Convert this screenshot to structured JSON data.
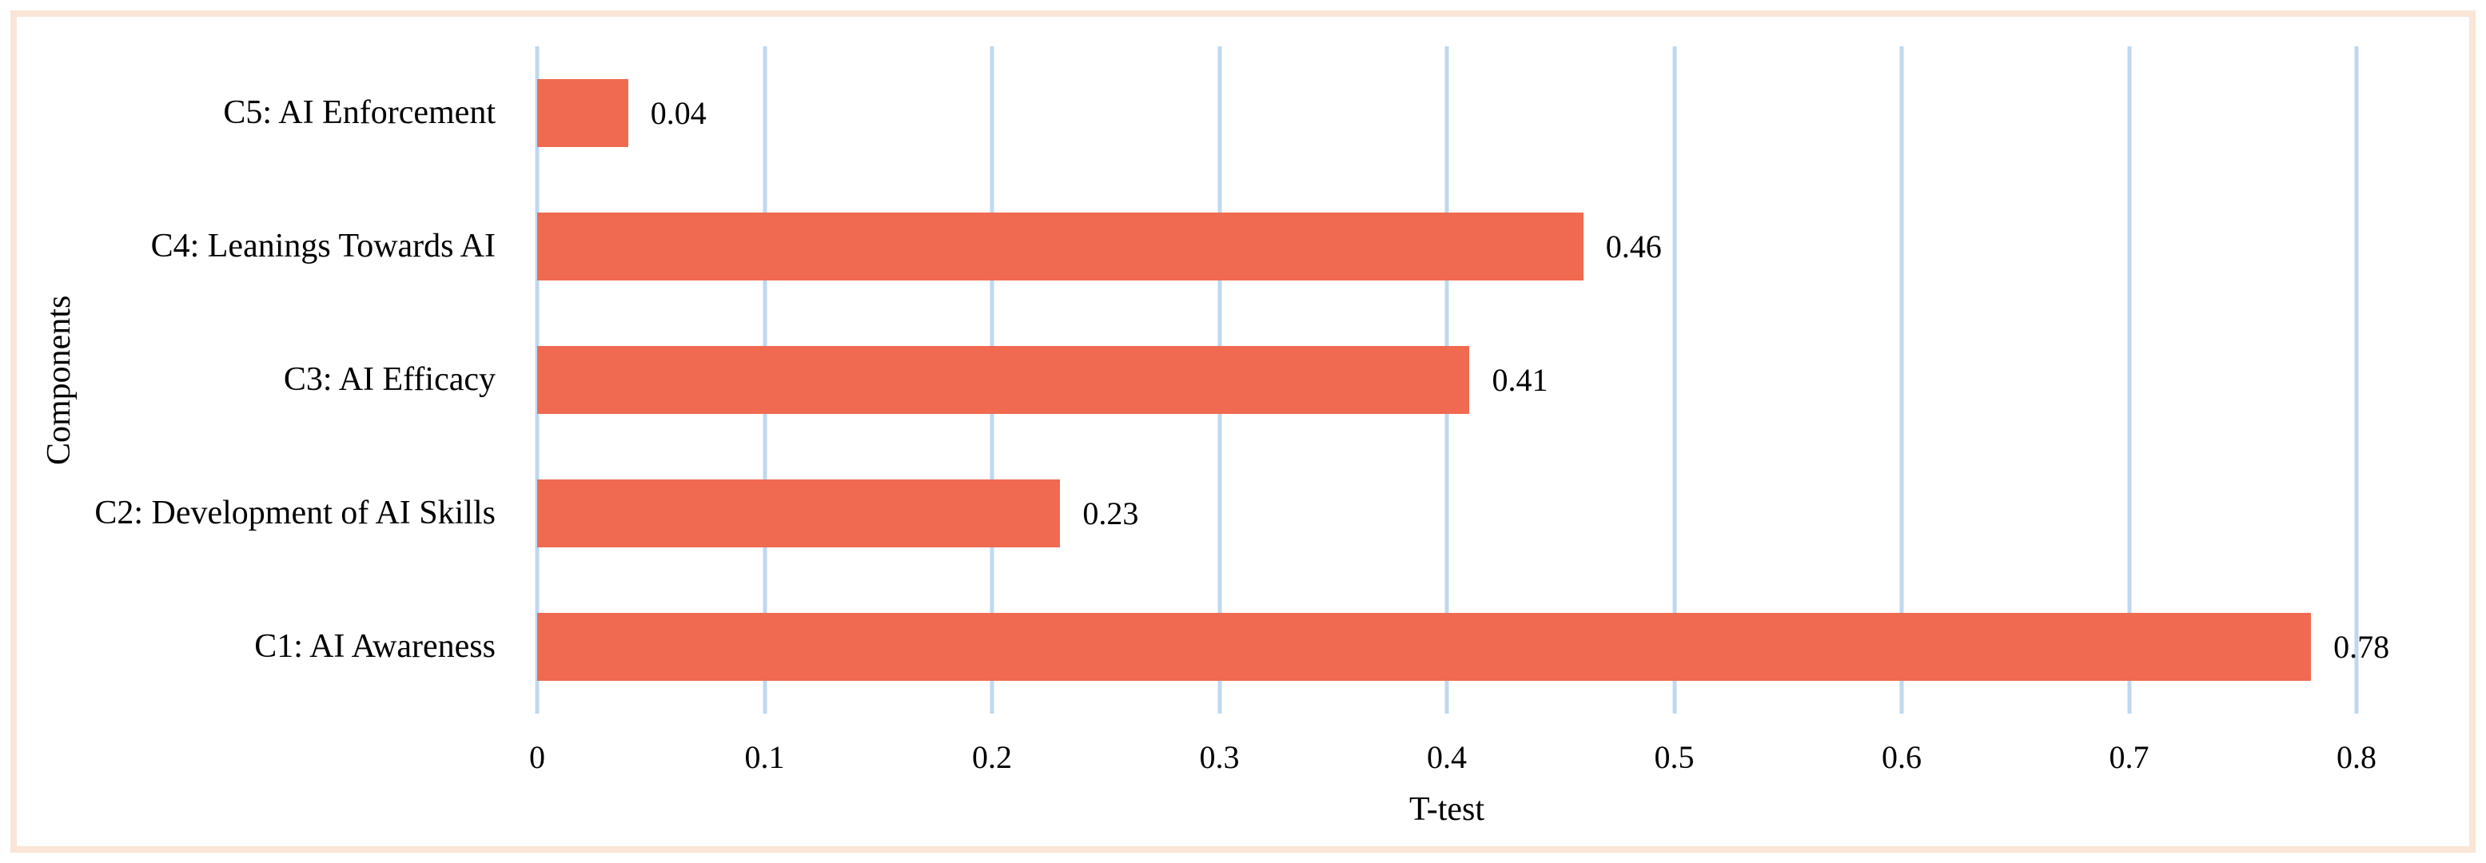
{
  "chart_data": {
    "type": "bar",
    "orientation": "horizontal",
    "title": "",
    "xlabel": "T-test",
    "ylabel": "Components",
    "xlim": [
      0,
      0.8
    ],
    "xticks": [
      "0",
      "0.1",
      "0.2",
      "0.3",
      "0.4",
      "0.5",
      "0.6",
      "0.7",
      "0.8"
    ],
    "grid": "vertical gridlines on, no horizontal gridlines, no axis line",
    "legend": "none",
    "categories": [
      "C1: AI Awareness",
      "C2: Development of AI Skills",
      "C3: AI Efficacy",
      "C4: Leanings Towards AI",
      "C5: AI Enforcement"
    ],
    "values": [
      0.78,
      0.23,
      0.41,
      0.46,
      0.04
    ],
    "rows_top_to_bottom": [
      {
        "label": "C5: AI Enforcement",
        "value": 0.04,
        "value_label": "0.04"
      },
      {
        "label": "C4: Leanings Towards AI",
        "value": 0.46,
        "value_label": "0.46"
      },
      {
        "label": "C3: AI Efficacy",
        "value": 0.41,
        "value_label": "0.41"
      },
      {
        "label": "C2: Development of AI Skills",
        "value": 0.23,
        "value_label": "0.23"
      },
      {
        "label": "C1: AI Awareness",
        "value": 0.78,
        "value_label": "0.78"
      }
    ],
    "colors": {
      "bar_fill": "#EF6A50",
      "gridline": "#BFD8EF",
      "frame_border": "#FAE5D6",
      "text": "#000000",
      "background": "#FFFFFF"
    }
  }
}
